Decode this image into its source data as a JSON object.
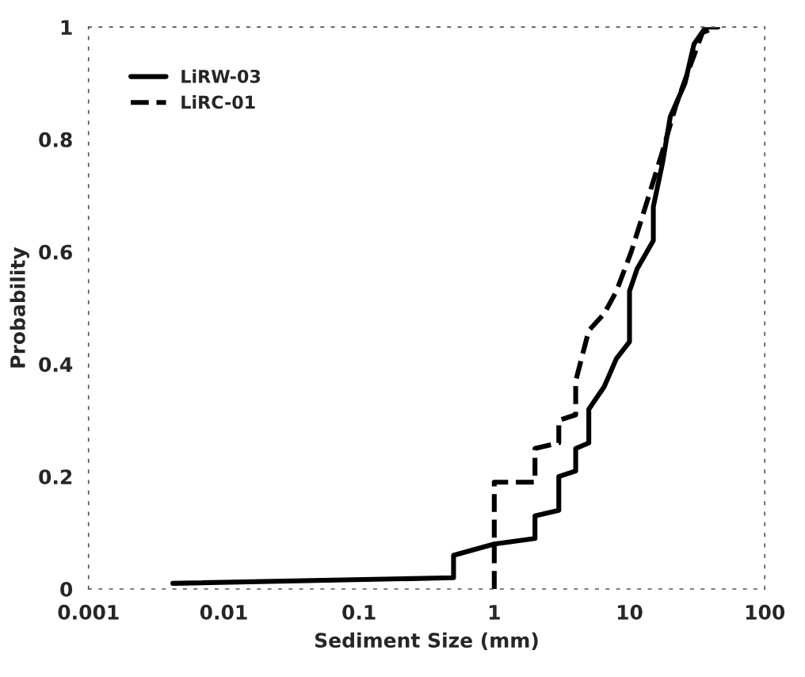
{
  "chart_data": {
    "type": "line",
    "xlabel": "Sediment Size (mm)",
    "ylabel": "Probability",
    "series": [
      {
        "name": "LiRW-03",
        "color": "#000000",
        "line_style": "solid",
        "x": [
          0.0042,
          0.5,
          0.5,
          1,
          2,
          2,
          3,
          3,
          4,
          4,
          5,
          5,
          6.5,
          8,
          10,
          10,
          11.4,
          15,
          15,
          17.6,
          20,
          25.7,
          30,
          36.7,
          45
        ],
        "values": [
          0.01,
          0.02,
          0.06,
          0.08,
          0.09,
          0.13,
          0.14,
          0.2,
          0.21,
          0.25,
          0.26,
          0.32,
          0.36,
          0.41,
          0.44,
          0.53,
          0.57,
          0.62,
          0.68,
          0.76,
          0.84,
          0.9,
          0.97,
          1.0,
          1.0
        ]
      },
      {
        "name": "LiRC-01",
        "color": "#000000",
        "line_style": "dashed",
        "x": [
          1,
          1,
          2,
          2,
          3,
          3,
          4,
          4,
          5,
          6.5,
          8,
          10.3,
          13.5,
          17.6,
          22,
          28,
          34.6,
          44
        ],
        "values": [
          0,
          0.19,
          0.19,
          0.25,
          0.26,
          0.3,
          0.31,
          0.37,
          0.46,
          0.49,
          0.53,
          0.6,
          0.69,
          0.78,
          0.86,
          0.93,
          0.99,
          1.0
        ]
      }
    ],
    "log": "x",
    "xlim": [
      0.001,
      100
    ],
    "xticks": [
      0.001,
      0.01,
      0.1,
      1,
      10,
      100
    ],
    "ylim": [
      0,
      1
    ],
    "yticks": [
      0,
      0.2,
      0.4,
      0.6,
      0.8,
      1
    ],
    "grid": false,
    "legend": "top left"
  }
}
